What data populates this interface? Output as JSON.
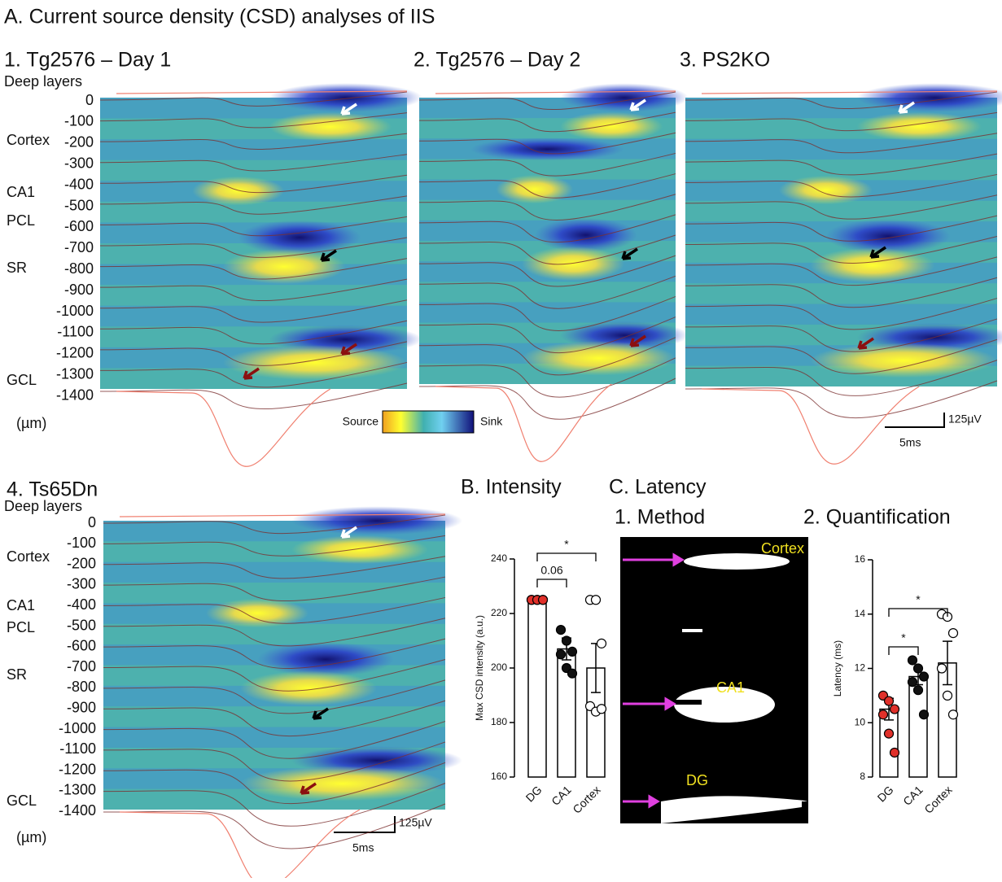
{
  "title": "A. Current source density (CSD) analyses of IIS",
  "panels": [
    "1. Tg2576 – Day 1",
    "2. Tg2576 – Day 2",
    "3. PS2KO",
    "4. Ts65Dn"
  ],
  "depth_axis": {
    "header": "Deep layers",
    "ticks": [
      0,
      -100,
      -200,
      -300,
      -400,
      -500,
      -600,
      -700,
      -800,
      -900,
      -1000,
      -1100,
      -1200,
      -1300,
      -1400
    ],
    "unit": "(µm)",
    "layers": [
      "Cortex",
      "CA1",
      "PCL",
      "SR",
      "GCL"
    ]
  },
  "colorbar": {
    "left": "Source",
    "right": "Sink"
  },
  "scalebar": {
    "voltage": "125µV",
    "time": "5ms"
  },
  "latency": {
    "title": "C. Latency",
    "method_title": "1. Method",
    "method_labels": [
      "Cortex",
      "CA1",
      "DG"
    ]
  },
  "chart_data": [
    {
      "type": "bar",
      "title": "B. Intensity",
      "ylabel": "Max CSD intensity (a.u.)",
      "categories": [
        "DG",
        "CA1",
        "Cortex"
      ],
      "values": [
        225,
        207,
        200
      ],
      "errors": [
        0.5,
        4,
        9
      ],
      "points": [
        [
          225,
          225,
          225,
          225,
          225,
          225
        ],
        [
          214,
          210,
          206,
          205,
          200,
          198
        ],
        [
          225,
          225,
          209,
          186,
          184,
          185
        ]
      ],
      "point_colors": [
        "#e0302a",
        "#111111",
        "#ffffff"
      ],
      "annotations": [
        "0.06",
        "*"
      ],
      "ylim": [
        160,
        240
      ],
      "yticks": [
        160,
        180,
        200,
        220,
        240
      ]
    },
    {
      "type": "bar",
      "title": "2. Quantification",
      "ylabel": "Latency (ms)",
      "categories": [
        "DG",
        "CA1",
        "Cortex"
      ],
      "values": [
        10.5,
        11.7,
        12.2
      ],
      "errors": [
        0.4,
        0.3,
        0.8
      ],
      "points": [
        [
          11,
          10.8,
          10.5,
          10.3,
          9.6,
          8.9
        ],
        [
          12.3,
          12,
          11.7,
          11.5,
          11.2,
          10.3
        ],
        [
          14,
          13.9,
          13.3,
          12,
          11,
          10.3
        ]
      ],
      "point_colors": [
        "#e0302a",
        "#111111",
        "#ffffff"
      ],
      "annotations": [
        "*",
        "*"
      ],
      "ylim": [
        8,
        16
      ],
      "yticks": [
        8,
        10,
        12,
        14,
        16
      ]
    }
  ]
}
